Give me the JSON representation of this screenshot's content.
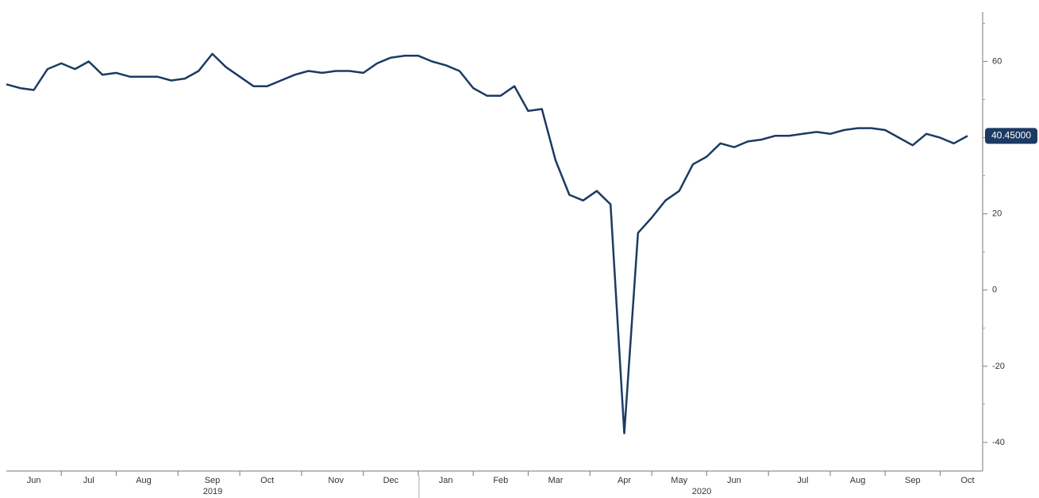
{
  "chart_data": {
    "type": "line",
    "categories": [
      null,
      null,
      "Jun",
      null,
      null,
      null,
      "Jul",
      null,
      null,
      null,
      "Aug",
      null,
      null,
      null,
      null,
      "Sep",
      null,
      null,
      null,
      "Oct",
      null,
      null,
      null,
      null,
      "Nov",
      null,
      null,
      null,
      "Dec",
      null,
      null,
      null,
      "Jan",
      null,
      null,
      null,
      "Feb",
      null,
      null,
      null,
      "Mar",
      null,
      null,
      null,
      null,
      "Apr",
      null,
      null,
      null,
      "May",
      null,
      null,
      null,
      "Jun",
      null,
      null,
      null,
      null,
      "Jul",
      null,
      null,
      null,
      "Aug",
      null,
      null,
      null,
      "Sep",
      null,
      null,
      null,
      "Oct"
    ],
    "year_labels": [
      "2019",
      "2020"
    ],
    "series": [
      {
        "color": "#1c3a63",
        "values": [
          54,
          53,
          52.5,
          58,
          59.5,
          58,
          60,
          56.5,
          57,
          56,
          56,
          56,
          55,
          55.5,
          57.5,
          62,
          58.5,
          56,
          53.5,
          53.5,
          55,
          56.5,
          57.5,
          57,
          57.5,
          57.5,
          57,
          59.5,
          61,
          61.5,
          61.5,
          60,
          59,
          57.5,
          53,
          51,
          51,
          53.5,
          47,
          47.5,
          34,
          25,
          23.5,
          26,
          22.5,
          -37.6,
          15,
          19,
          23.5,
          26,
          33,
          35,
          38.5,
          37.5,
          39,
          39.5,
          40.5,
          40.5,
          41,
          41.5,
          41,
          42,
          42.5,
          42.5,
          42,
          40,
          38,
          41,
          40,
          38.5,
          40.45
        ],
        "value_labels": [
          null,
          null,
          null,
          null,
          null,
          null,
          null,
          null,
          null,
          null,
          null,
          null,
          null,
          null,
          null,
          null,
          null,
          null,
          null,
          null,
          null,
          null,
          null,
          null,
          null,
          null,
          null,
          null,
          null,
          null,
          null,
          null,
          null,
          null,
          null,
          null,
          null,
          null,
          null,
          null,
          null,
          null,
          null,
          null,
          null,
          null,
          null,
          null,
          null,
          null,
          null,
          null,
          null,
          null,
          null,
          null,
          null,
          null,
          null,
          null,
          null,
          null,
          null,
          null,
          null,
          null,
          null,
          null,
          null,
          null,
          "40.45000"
        ]
      }
    ],
    "ylim": [
      -47.5,
      73
    ],
    "yticks": [
      -40,
      -20,
      0,
      20,
      40,
      60
    ],
    "y_axis_side": "right"
  }
}
